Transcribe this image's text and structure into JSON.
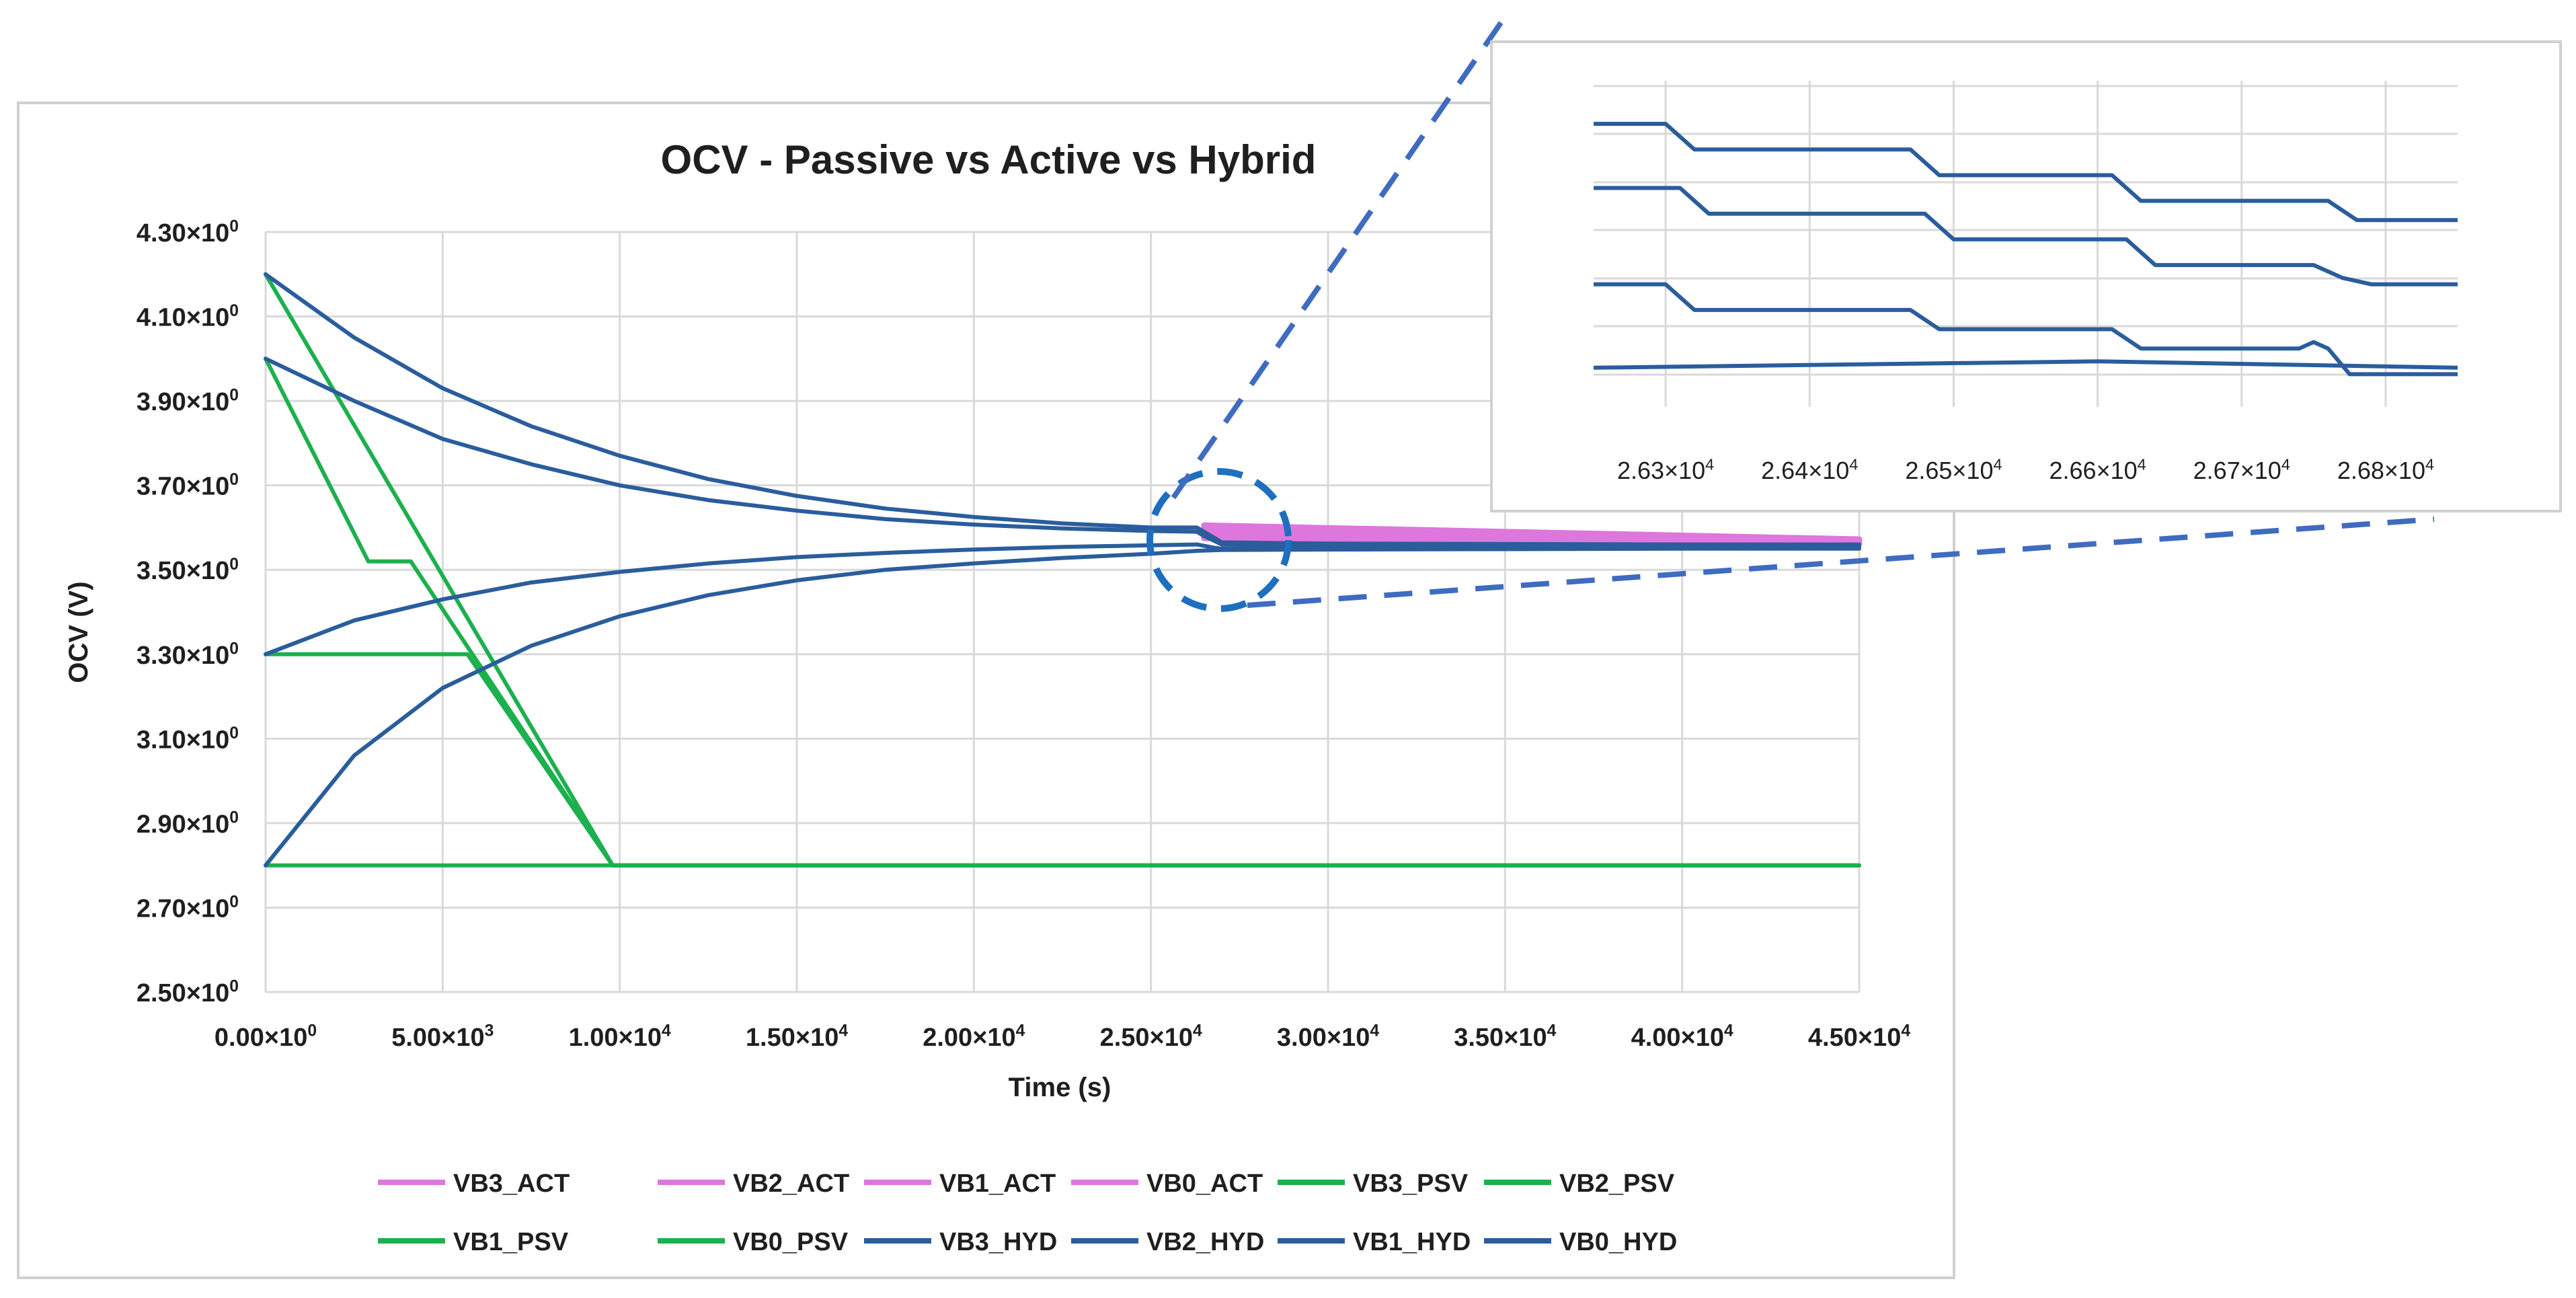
{
  "chart_data": {
    "type": "line",
    "title": "OCV - Passive vs Active vs Hybrid",
    "xlabel": "Time (s)",
    "ylabel": "OCV (V)",
    "xlim": [
      0,
      45000
    ],
    "ylim": [
      2.5,
      4.3
    ],
    "grid": true,
    "legend_position": "bottom",
    "x_ticks": [
      {
        "value": 0,
        "mant": "0.00",
        "exp": "0"
      },
      {
        "value": 5000,
        "mant": "5.00",
        "exp": "3"
      },
      {
        "value": 10000,
        "mant": "1.00",
        "exp": "4"
      },
      {
        "value": 15000,
        "mant": "1.50",
        "exp": "4"
      },
      {
        "value": 20000,
        "mant": "2.00",
        "exp": "4"
      },
      {
        "value": 25000,
        "mant": "2.50",
        "exp": "4"
      },
      {
        "value": 30000,
        "mant": "3.00",
        "exp": "4"
      },
      {
        "value": 35000,
        "mant": "3.50",
        "exp": "4"
      },
      {
        "value": 40000,
        "mant": "4.00",
        "exp": "4"
      },
      {
        "value": 45000,
        "mant": "4.50",
        "exp": "4"
      }
    ],
    "y_ticks": [
      {
        "value": 4.3,
        "mant": "4.30",
        "exp": "0"
      },
      {
        "value": 4.1,
        "mant": "4.10",
        "exp": "0"
      },
      {
        "value": 3.9,
        "mant": "3.90",
        "exp": "0"
      },
      {
        "value": 3.7,
        "mant": "3.70",
        "exp": "0"
      },
      {
        "value": 3.5,
        "mant": "3.50",
        "exp": "0"
      },
      {
        "value": 3.3,
        "mant": "3.30",
        "exp": "0"
      },
      {
        "value": 3.1,
        "mant": "3.10",
        "exp": "0"
      },
      {
        "value": 2.9,
        "mant": "2.90",
        "exp": "0"
      },
      {
        "value": 2.7,
        "mant": "2.70",
        "exp": "0"
      },
      {
        "value": 2.5,
        "mant": "2.50",
        "exp": "0"
      }
    ],
    "series": [
      {
        "name": "VB3_ACT",
        "color": "#dd77dd",
        "x": [
          26500,
          45000
        ],
        "y": [
          3.605,
          3.572
        ]
      },
      {
        "name": "VB2_ACT",
        "color": "#dd77dd",
        "x": [
          26500,
          45000
        ],
        "y": [
          3.598,
          3.568
        ]
      },
      {
        "name": "VB1_ACT",
        "color": "#dd77dd",
        "x": [
          26500,
          45000
        ],
        "y": [
          3.585,
          3.565
        ]
      },
      {
        "name": "VB0_ACT",
        "color": "#dd77dd",
        "x": [
          26500,
          45000
        ],
        "y": [
          3.575,
          3.562
        ]
      },
      {
        "name": "VB3_PSV",
        "color": "#1db04e",
        "x": [
          0,
          9800,
          45000
        ],
        "y": [
          4.2,
          2.8,
          2.8
        ]
      },
      {
        "name": "VB2_PSV",
        "color": "#1db04e",
        "x": [
          0,
          2900,
          4100,
          9800,
          45000
        ],
        "y": [
          4.0,
          3.52,
          3.52,
          2.8,
          2.8
        ]
      },
      {
        "name": "VB1_PSV",
        "color": "#1db04e",
        "x": [
          0,
          5700,
          9800,
          45000
        ],
        "y": [
          3.3,
          3.3,
          2.8,
          2.8
        ]
      },
      {
        "name": "VB0_PSV",
        "color": "#1db04e",
        "x": [
          0,
          45000
        ],
        "y": [
          2.8,
          2.8
        ]
      },
      {
        "name": "VB3_HYD",
        "color": "#2a5d9c",
        "x": [
          0,
          2500,
          5000,
          7500,
          10000,
          12500,
          15000,
          17500,
          20000,
          22500,
          25000,
          26300,
          26500,
          26800,
          27000,
          30000,
          35000,
          40000,
          45000
        ],
        "y": [
          4.2,
          4.05,
          3.93,
          3.84,
          3.77,
          3.715,
          3.675,
          3.645,
          3.625,
          3.61,
          3.6,
          3.6,
          3.59,
          3.575,
          3.565,
          3.562,
          3.561,
          3.56,
          3.56
        ]
      },
      {
        "name": "VB2_HYD",
        "color": "#2a5d9c",
        "x": [
          0,
          2500,
          5000,
          7500,
          10000,
          12500,
          15000,
          17500,
          20000,
          22500,
          25000,
          26300,
          26500,
          26800,
          27000,
          30000,
          35000,
          40000,
          45000
        ],
        "y": [
          4.0,
          3.9,
          3.81,
          3.75,
          3.7,
          3.665,
          3.64,
          3.62,
          3.607,
          3.598,
          3.592,
          3.59,
          3.58,
          3.568,
          3.56,
          3.558,
          3.557,
          3.556,
          3.555
        ]
      },
      {
        "name": "VB1_HYD",
        "color": "#2a5d9c",
        "x": [
          0,
          2500,
          5000,
          7500,
          10000,
          12500,
          15000,
          17500,
          20000,
          22500,
          25000,
          26300,
          26800,
          27000,
          30000,
          35000,
          40000,
          45000
        ],
        "y": [
          3.3,
          3.38,
          3.43,
          3.47,
          3.495,
          3.515,
          3.53,
          3.54,
          3.548,
          3.554,
          3.558,
          3.56,
          3.552,
          3.55,
          3.552,
          3.553,
          3.553,
          3.553
        ]
      },
      {
        "name": "VB0_HYD",
        "color": "#2a5d9c",
        "x": [
          0,
          2500,
          5000,
          7500,
          10000,
          12500,
          15000,
          17500,
          20000,
          22500,
          25000,
          26300,
          27000,
          30000,
          35000,
          40000,
          45000
        ],
        "y": [
          2.8,
          3.06,
          3.22,
          3.32,
          3.39,
          3.44,
          3.475,
          3.5,
          3.515,
          3.528,
          3.538,
          3.545,
          3.547,
          3.548,
          3.549,
          3.55,
          3.55
        ]
      }
    ],
    "legend": [
      [
        "VB3_ACT",
        "VB2_ACT",
        "VB1_ACT",
        "VB0_ACT",
        "VB3_PSV",
        "VB2_PSV"
      ],
      [
        "VB1_PSV",
        "VB0_PSV",
        "VB3_HYD",
        "VB2_HYD",
        "VB1_HYD",
        "VB0_HYD"
      ]
    ],
    "inset": {
      "xlim": [
        26250,
        26850
      ],
      "x_ticks": [
        {
          "value": 26300,
          "mant": "2.63",
          "exp": "4"
        },
        {
          "value": 26400,
          "mant": "2.64",
          "exp": "4"
        },
        {
          "value": 26500,
          "mant": "2.65",
          "exp": "4"
        },
        {
          "value": 26600,
          "mant": "2.66",
          "exp": "4"
        },
        {
          "value": 26700,
          "mant": "2.67",
          "exp": "4"
        },
        {
          "value": 26800,
          "mant": "2.68",
          "exp": "4"
        }
      ],
      "color": "#2a5d9c",
      "series": [
        {
          "x": [
            26250,
            26300,
            26320,
            26470,
            26490,
            26610,
            26630,
            26760,
            26780,
            26850
          ],
          "y": [
            3.6,
            3.6,
            3.596,
            3.596,
            3.592,
            3.592,
            3.588,
            3.588,
            3.585,
            3.585
          ]
        },
        {
          "x": [
            26250,
            26310,
            26330,
            26480,
            26500,
            26620,
            26640,
            26750,
            26760,
            26770,
            26790,
            26850
          ],
          "y": [
            3.59,
            3.59,
            3.586,
            3.586,
            3.582,
            3.582,
            3.578,
            3.578,
            3.577,
            3.576,
            3.575,
            3.575
          ]
        },
        {
          "x": [
            26250,
            26300,
            26320,
            26470,
            26490,
            26610,
            26630,
            26740,
            26750,
            26760,
            26775,
            26850
          ],
          "y": [
            3.575,
            3.575,
            3.571,
            3.571,
            3.568,
            3.568,
            3.565,
            3.565,
            3.566,
            3.565,
            3.561,
            3.561
          ]
        },
        {
          "x": [
            26250,
            26600,
            26850
          ],
          "y": [
            3.562,
            3.563,
            3.562
          ]
        }
      ]
    }
  },
  "colors": {
    "act": "#dd77dd",
    "psv": "#1db04e",
    "hyd": "#2a5d9c",
    "grid": "#d9d9d9",
    "frame": "#d0d0d0",
    "callout": "#3f6cc0"
  }
}
